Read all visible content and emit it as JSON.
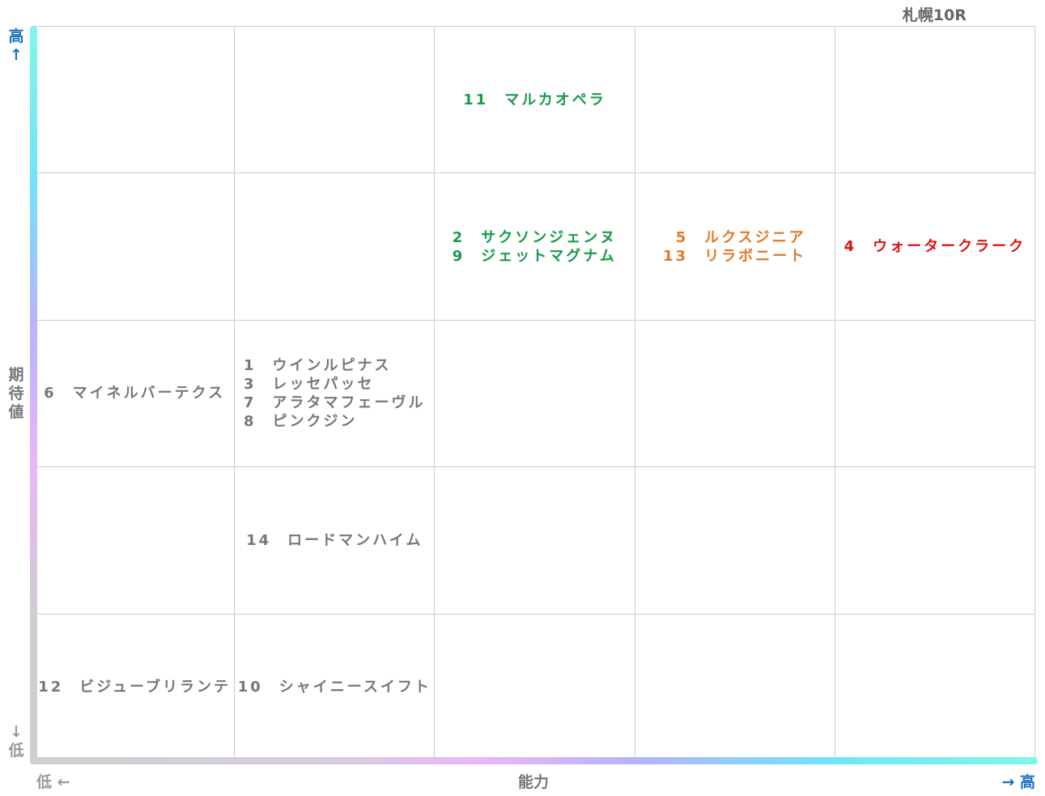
{
  "title": "札幌10R",
  "y_axis": {
    "high": "高↑",
    "label": "期待値",
    "low": "↓低"
  },
  "x_axis": {
    "low": "低 ←",
    "label": "能力",
    "high": "→ 高"
  },
  "grid": {
    "rows": [
      [
        {
          "entries": []
        },
        {
          "entries": []
        },
        {
          "color": "#1a9a4a",
          "entries": [
            {
              "number": 11,
              "name": "マルカオペラ"
            }
          ]
        },
        {
          "entries": []
        },
        {
          "entries": []
        }
      ],
      [
        {
          "entries": []
        },
        {
          "entries": []
        },
        {
          "color": "#1a9a4a",
          "entries": [
            {
              "number": 2,
              "name": "サクソンジェンヌ"
            },
            {
              "number": 9,
              "name": "ジェットマグナム"
            }
          ]
        },
        {
          "color": "#e07a2a",
          "entries": [
            {
              "number": 5,
              "name": "ルクスジニア"
            },
            {
              "number": 13,
              "name": "リラボニート"
            }
          ]
        },
        {
          "color": "#e01010",
          "entries": [
            {
              "number": 4,
              "name": "ウォータークラーク"
            }
          ]
        }
      ],
      [
        {
          "color": "#777777",
          "entries": [
            {
              "number": 6,
              "name": "マイネルバーテクス"
            }
          ]
        },
        {
          "color": "#777777",
          "entries": [
            {
              "number": 1,
              "name": "ウインルピナス"
            },
            {
              "number": 3,
              "name": "レッセパッセ"
            },
            {
              "number": 7,
              "name": "アラタマフェーヴル"
            },
            {
              "number": 8,
              "name": "ピンクジン"
            }
          ]
        },
        {
          "entries": []
        },
        {
          "entries": []
        },
        {
          "entries": []
        }
      ],
      [
        {
          "entries": []
        },
        {
          "color": "#777777",
          "entries": [
            {
              "number": 14,
              "name": "ロードマンハイム"
            }
          ]
        },
        {
          "entries": []
        },
        {
          "entries": []
        },
        {
          "entries": []
        }
      ],
      [
        {
          "color": "#777777",
          "entries": [
            {
              "number": 12,
              "name": "ビジューブリランテ"
            }
          ]
        },
        {
          "color": "#777777",
          "entries": [
            {
              "number": 10,
              "name": "シャイニースイフト"
            }
          ]
        },
        {
          "entries": []
        },
        {
          "entries": []
        },
        {
          "entries": []
        }
      ]
    ]
  }
}
